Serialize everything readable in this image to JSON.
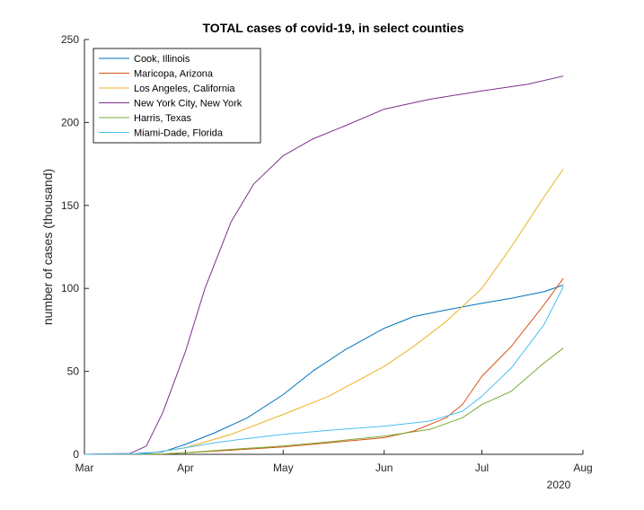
{
  "chart_data": {
    "type": "line",
    "title": "TOTAL cases of covid-19, in select counties",
    "xlabel": "",
    "ylabel": "number of cases (thousand)",
    "x_tick_labels": [
      "Mar",
      "Apr",
      "May",
      "Jun",
      "Jul",
      "Aug"
    ],
    "x_secondary_label": "2020",
    "y_ticks": [
      0,
      50,
      100,
      150,
      200,
      250
    ],
    "ylim": [
      0,
      250
    ],
    "x_range": [
      "2020-03-01",
      "2020-08-01"
    ],
    "legend_position": "top-left",
    "series": [
      {
        "name": "Cook, Illinois",
        "color": "#0072bd",
        "x": [
          "2020-03-01",
          "2020-03-15",
          "2020-03-25",
          "2020-04-01",
          "2020-04-10",
          "2020-04-20",
          "2020-05-01",
          "2020-05-10",
          "2020-05-20",
          "2020-06-01",
          "2020-06-10",
          "2020-06-20",
          "2020-07-01",
          "2020-07-10",
          "2020-07-20",
          "2020-07-26"
        ],
        "values": [
          0,
          0.1,
          1.5,
          6,
          13,
          22,
          36,
          50,
          63,
          76,
          83,
          87,
          91,
          94,
          98,
          102
        ]
      },
      {
        "name": "Maricopa, Arizona",
        "color": "#d95319",
        "x": [
          "2020-03-01",
          "2020-03-25",
          "2020-04-01",
          "2020-04-15",
          "2020-05-01",
          "2020-05-15",
          "2020-06-01",
          "2020-06-10",
          "2020-06-20",
          "2020-06-25",
          "2020-07-01",
          "2020-07-10",
          "2020-07-20",
          "2020-07-26"
        ],
        "values": [
          0,
          0.2,
          1,
          2.5,
          4.5,
          7,
          10,
          14,
          22,
          30,
          47,
          65,
          90,
          106
        ]
      },
      {
        "name": "Los Angeles, California",
        "color": "#edb120",
        "x": [
          "2020-03-01",
          "2020-03-20",
          "2020-04-01",
          "2020-04-15",
          "2020-05-01",
          "2020-05-15",
          "2020-06-01",
          "2020-06-10",
          "2020-06-20",
          "2020-07-01",
          "2020-07-10",
          "2020-07-20",
          "2020-07-26"
        ],
        "values": [
          0,
          0.3,
          4,
          12,
          24,
          35,
          53,
          65,
          80,
          100,
          125,
          155,
          172
        ]
      },
      {
        "name": "New York City, New York",
        "color": "#7e2f8e",
        "x": [
          "2020-03-01",
          "2020-03-15",
          "2020-03-20",
          "2020-03-25",
          "2020-04-01",
          "2020-04-07",
          "2020-04-15",
          "2020-04-22",
          "2020-05-01",
          "2020-05-10",
          "2020-05-20",
          "2020-06-01",
          "2020-06-15",
          "2020-07-01",
          "2020-07-15",
          "2020-07-26"
        ],
        "values": [
          0,
          0.5,
          5,
          25,
          62,
          100,
          140,
          163,
          180,
          190,
          198,
          208,
          214,
          219,
          223,
          228
        ]
      },
      {
        "name": "Harris, Texas",
        "color": "#77ac30",
        "x": [
          "2020-03-01",
          "2020-03-25",
          "2020-04-01",
          "2020-04-15",
          "2020-05-01",
          "2020-05-15",
          "2020-06-01",
          "2020-06-15",
          "2020-06-25",
          "2020-07-01",
          "2020-07-10",
          "2020-07-20",
          "2020-07-26"
        ],
        "values": [
          0,
          0.2,
          1,
          3,
          5,
          7.5,
          11,
          15,
          22,
          30,
          38,
          55,
          64
        ]
      },
      {
        "name": "Miami-Dade, Florida",
        "color": "#4dbeee",
        "x": [
          "2020-03-01",
          "2020-03-20",
          "2020-04-01",
          "2020-04-10",
          "2020-04-20",
          "2020-05-01",
          "2020-05-15",
          "2020-06-01",
          "2020-06-15",
          "2020-06-25",
          "2020-07-01",
          "2020-07-10",
          "2020-07-20",
          "2020-07-26"
        ],
        "values": [
          0,
          0.3,
          4,
          7,
          9.5,
          12,
          14.5,
          17,
          20,
          26,
          35,
          52,
          78,
          101
        ]
      }
    ]
  }
}
